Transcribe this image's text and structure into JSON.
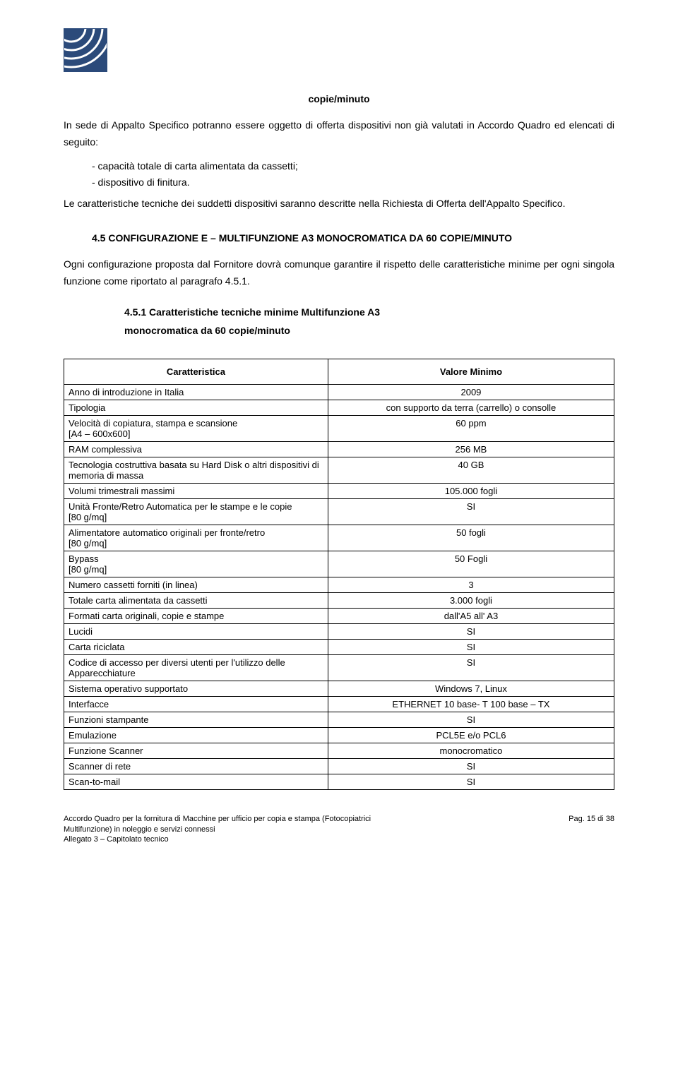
{
  "header": {
    "logo_color": "#2b4a7a"
  },
  "section_title": "copie/minuto",
  "para1": "In sede di Appalto Specifico potranno essere oggetto di offerta dispositivi non già valutati in Accordo Quadro ed elencati di seguito:",
  "bullets": [
    "-    capacità totale di carta alimentata da cassetti;",
    "-    dispositivo di finitura."
  ],
  "para2": "Le caratteristiche tecniche dei suddetti dispositivi saranno descritte nella Richiesta di Offerta dell'Appalto Specifico.",
  "heading_45": "4.5  CONFIGURAZIONE E – MULTIFUNZIONE A3 MONOCROMATICA DA 60 COPIE/MINUTO",
  "para3": "Ogni configurazione proposta dal Fornitore dovrà comunque garantire il rispetto delle caratteristiche minime per ogni singola funzione come riportato al paragrafo 4.5.1.",
  "heading_451_a": "4.5.1   Caratteristiche    tecniche    minime    Multifunzione    A3",
  "heading_451_b": "monocromatica da 60 copie/minuto",
  "table": {
    "col1_header": "Caratteristica",
    "col2_header": "Valore Minimo",
    "rows": [
      {
        "c": "Anno di introduzione in Italia",
        "v": "2009"
      },
      {
        "c": "Tipologia",
        "v": "con supporto da terra (carrello) o consolle"
      },
      {
        "c": "Velocità di copiatura, stampa e scansione\n[A4 – 600x600]",
        "v": "60 ppm"
      },
      {
        "c": "RAM complessiva",
        "v": "256 MB"
      },
      {
        "c": "Tecnologia costruttiva basata su Hard Disk o altri dispositivi di memoria di massa",
        "v": "40 GB"
      },
      {
        "c": "Volumi trimestrali massimi",
        "v": "105.000 fogli"
      },
      {
        "c": "Unità Fronte/Retro Automatica per le stampe e le copie\n[80 g/mq]",
        "v": "SI"
      },
      {
        "c": "Alimentatore automatico originali per fronte/retro\n[80 g/mq]",
        "v": "50 fogli"
      },
      {
        "c": "Bypass\n[80 g/mq]",
        "v": "50 Fogli"
      },
      {
        "c": "Numero cassetti forniti (in linea)",
        "v": "3"
      },
      {
        "c": "Totale carta alimentata da cassetti",
        "v": "3.000 fogli"
      },
      {
        "c": "Formati carta originali, copie e stampe",
        "v": "dall'A5 all' A3"
      },
      {
        "c": "Lucidi",
        "v": "SI"
      },
      {
        "c": "Carta riciclata",
        "v": "SI"
      },
      {
        "c": "Codice di accesso per diversi utenti per l'utilizzo delle Apparecchiature",
        "v": "SI"
      },
      {
        "c": "Sistema operativo supportato",
        "v": "Windows 7, Linux"
      },
      {
        "c": "Interfacce",
        "v": "ETHERNET 10 base- T 100 base – TX"
      },
      {
        "c": "Funzioni stampante",
        "v": "SI"
      },
      {
        "c": "Emulazione",
        "v": "PCL5E e/o PCL6"
      },
      {
        "c": "Funzione Scanner",
        "v": "monocromatico"
      },
      {
        "c": "Scanner di rete",
        "v": "SI"
      },
      {
        "c": "Scan-to-mail",
        "v": "SI"
      }
    ]
  },
  "footer": {
    "line1_left": "Accordo Quadro per la fornitura di Macchine per ufficio per copia e stampa (Fotocopiatrici",
    "line1_right": "Pag. 15 di 38",
    "line2": "Multifunzione) in noleggio e servizi connessi",
    "line3": "Allegato 3 – Capitolato tecnico"
  }
}
